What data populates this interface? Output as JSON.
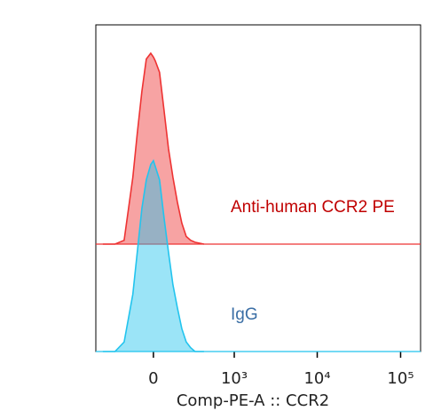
{
  "chart_data": {
    "type": "offset_histogram",
    "xlabel": "Comp-PE-A :: CCR2",
    "xscale": "biexponential",
    "x": [
      -412,
      -276,
      -195,
      -130,
      -100,
      -70,
      -43,
      -16,
      0,
      11,
      37,
      65,
      93,
      123,
      154,
      188,
      225,
      265,
      308,
      412
    ],
    "series": [
      {
        "name": "Anti-human CCR2 PE",
        "color": "#ee3333",
        "values": [
          0,
          0,
          2,
          35,
          58,
          80,
          97,
          100,
          98,
          96,
          90,
          70,
          50,
          35,
          22,
          11,
          4,
          2,
          1,
          0
        ]
      },
      {
        "name": "IgG",
        "color": "#22c4ee",
        "values": [
          0,
          0,
          5,
          30,
          52,
          75,
          90,
          98,
          100,
          97,
          90,
          70,
          52,
          35,
          23,
          12,
          5,
          2,
          0,
          0
        ]
      }
    ],
    "xlim": [
      -510,
      173600
    ],
    "ylim": [
      0,
      100
    ],
    "xticks": [
      0,
      {
        "value": 1000,
        "label": "10³"
      },
      {
        "value": 10000,
        "label": "10⁴"
      },
      {
        "value": 100000,
        "label": "10⁵"
      }
    ]
  }
}
